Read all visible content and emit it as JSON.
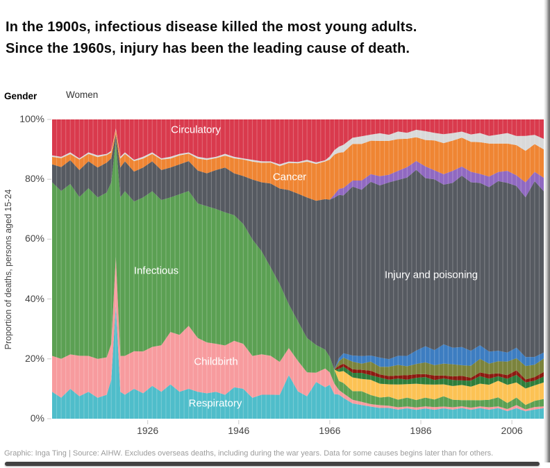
{
  "header": {
    "title_line1": "In the 1900s, infectious disease killed the most young adults.",
    "title_line2": "Since the 1960s, injury has been the leading cause of death.",
    "gender_label": "Gender",
    "gender_value": "Women"
  },
  "y_axis": {
    "title": "Proportion of deaths, persons aged 15-24",
    "tick_labels": [
      "100%",
      "80%",
      "60%",
      "40%",
      "20%",
      "0%"
    ]
  },
  "x_axis": {
    "tick_labels": [
      "1926",
      "1946",
      "1966",
      "1986",
      "2006"
    ]
  },
  "footer": {
    "caption": "Graphic: Inga Ting | Source: AIHW. Excludes overseas deaths, including during the war years. Data for some causes begins later than for others."
  },
  "chart_data": {
    "type": "area",
    "stacked": true,
    "normalized_to_100": true,
    "title": "Proportion of deaths by cause, women aged 15-24",
    "xlabel": "",
    "ylabel": "Proportion of deaths, persons aged 15-24",
    "x_domain": [
      1905,
      2013
    ],
    "y_domain": [
      0,
      100
    ],
    "xticks": [
      1926,
      1946,
      1966,
      1986,
      2006
    ],
    "yticks": [
      100,
      80,
      60,
      40,
      20,
      0
    ],
    "grid": {
      "vertical_year_lines": true,
      "color": "rgba(255,255,255,0.25)"
    },
    "legend": "labels drawn on areas",
    "x": [
      1905,
      1907,
      1909,
      1911,
      1913,
      1915,
      1917,
      1918,
      1919,
      1920,
      1921,
      1923,
      1925,
      1927,
      1929,
      1931,
      1933,
      1935,
      1937,
      1939,
      1941,
      1943,
      1945,
      1947,
      1949,
      1951,
      1953,
      1955,
      1957,
      1959,
      1961,
      1963,
      1965,
      1966,
      1967,
      1968,
      1969,
      1971,
      1973,
      1975,
      1977,
      1979,
      1981,
      1983,
      1985,
      1987,
      1989,
      1991,
      1993,
      1995,
      1997,
      1999,
      2001,
      2003,
      2005,
      2007,
      2009,
      2011,
      2013
    ],
    "series": [
      {
        "name": "respiratory",
        "label": "Respiratory",
        "color": "#4fbdca",
        "values": [
          9,
          7,
          10,
          7.5,
          9,
          7,
          8,
          13,
          38,
          9,
          8,
          10,
          8.5,
          11,
          9,
          11.5,
          9,
          10,
          9,
          8.5,
          9,
          8,
          10.5,
          10,
          7,
          8,
          8,
          8,
          14.5,
          9,
          7.5,
          12,
          10,
          11,
          8,
          8,
          7,
          5,
          4.5,
          4,
          3.5,
          3.5,
          3,
          3.5,
          3,
          3.5,
          3,
          3.5,
          3,
          3.5,
          3,
          3.5,
          3,
          3.5,
          2.5,
          3.5,
          2.5,
          3,
          3.5
        ]
      },
      {
        "name": "childbirth",
        "label": "Childbirth",
        "color": "#f79b9e",
        "values": [
          12,
          13,
          11.5,
          13.5,
          12,
          13,
          12.5,
          12,
          16,
          12,
          13,
          12.5,
          14,
          13,
          15.5,
          17.5,
          19,
          21,
          18,
          17,
          16,
          16.5,
          15.5,
          15,
          14,
          13.5,
          13,
          11,
          9,
          10,
          8,
          3,
          6,
          4,
          3.5,
          1.5,
          1.5,
          1.2,
          1,
          0.8,
          0.9,
          0.7,
          0.8,
          0.6,
          0.8,
          0.7,
          0.9,
          0.6,
          0.8,
          0.6,
          0.7,
          0.6,
          0.8,
          0.6,
          0.7,
          1,
          0.6,
          0.8,
          0.6
        ]
      },
      {
        "name": "infectious",
        "label": "Infectious",
        "color": "#5ba053",
        "values": [
          58,
          56,
          57,
          53,
          56,
          54,
          55,
          54,
          39,
          53,
          55,
          50,
          51.5,
          52,
          48.5,
          45,
          47,
          45,
          45,
          45.5,
          45,
          44.5,
          42,
          40,
          39,
          34.5,
          29.5,
          26,
          14.5,
          13,
          11.5,
          9,
          6,
          5,
          4.5,
          3,
          3.5,
          2.8,
          3.5,
          3,
          2.5,
          3,
          2.5,
          3,
          2.5,
          3,
          2.5,
          3.5,
          2.5,
          2,
          2.5,
          2,
          2.5,
          3,
          2,
          2.5,
          1.5,
          2,
          2.5
        ]
      },
      {
        "name": "band-yellow",
        "label": "",
        "color": "#fcc254",
        "values": [
          0,
          0,
          0,
          0,
          0,
          0,
          0,
          0,
          0,
          0,
          0,
          0,
          0,
          0,
          0,
          0,
          0,
          0,
          0,
          0,
          0,
          0,
          0,
          0,
          0,
          0,
          0,
          0,
          0,
          0,
          0,
          0,
          0,
          0,
          0,
          3,
          4,
          4.5,
          4,
          5,
          4.5,
          4,
          5,
          4.5,
          5.5,
          4.5,
          5,
          4,
          4.5,
          5,
          4.5,
          5.5,
          5,
          5.5,
          6,
          5,
          5.5,
          5,
          5.5
        ]
      },
      {
        "name": "band-dark-green",
        "label": "",
        "color": "#2e7d3b",
        "values": [
          0,
          0,
          0,
          0,
          0,
          0,
          0,
          0,
          0,
          0,
          0,
          0,
          0,
          0,
          0,
          0,
          0,
          0,
          0,
          0,
          0,
          0,
          0,
          0,
          0,
          0,
          0,
          0,
          0,
          0,
          0,
          0,
          0,
          0,
          0,
          1,
          1.5,
          1.5,
          2,
          1.5,
          2,
          1.5,
          2,
          1.5,
          2,
          2.5,
          1.5,
          2,
          2,
          1.5,
          2,
          2.5,
          2,
          1.5,
          2,
          2.5,
          2,
          1.5,
          2
        ]
      },
      {
        "name": "band-maroon",
        "label": "",
        "color": "#8c1a10",
        "values": [
          0,
          0,
          0,
          0,
          0,
          0,
          0,
          0,
          0,
          0,
          0,
          0,
          0,
          0,
          0,
          0,
          0,
          0,
          0,
          0,
          0,
          0,
          0,
          0,
          0,
          0,
          0,
          0,
          0,
          0,
          0,
          0,
          0,
          0,
          0,
          1,
          1,
          1.2,
          1,
          1.5,
          1,
          1.2,
          1,
          1.5,
          1.2,
          1,
          1.5,
          1,
          1.2,
          1.5,
          1,
          1.2,
          1.5,
          1,
          1.2,
          1.5,
          1,
          1.2,
          1.5
        ]
      },
      {
        "name": "band-olive",
        "label": "",
        "color": "#7b833c",
        "values": [
          0,
          0,
          0,
          0,
          0,
          0,
          0,
          0,
          0,
          0,
          0,
          0,
          0,
          0,
          0,
          0,
          0,
          0,
          0,
          0,
          0,
          0,
          0,
          0,
          0,
          0,
          0,
          0,
          0,
          0,
          0,
          0,
          0,
          0,
          0,
          1.5,
          2,
          2.5,
          2,
          3,
          2.5,
          3,
          3.5,
          3,
          3.5,
          4,
          3.5,
          4,
          4,
          3.5,
          4,
          4.5,
          3.5,
          4,
          4.5,
          4,
          4.5,
          4,
          4.5
        ]
      },
      {
        "name": "band-blue",
        "label": "",
        "color": "#3d7dc1",
        "values": [
          0,
          0,
          0,
          0,
          0,
          0,
          0,
          0,
          0,
          0,
          0,
          0,
          0,
          0,
          0,
          0,
          0,
          0,
          0,
          0,
          0,
          0,
          0,
          0,
          0,
          0,
          0,
          0,
          0,
          0,
          0,
          0,
          0,
          0,
          0,
          1,
          1.5,
          2,
          2.5,
          2,
          3,
          2.5,
          3,
          3.5,
          4.5,
          5.5,
          5,
          6.5,
          5.5,
          6,
          5,
          4.5,
          4,
          3.5,
          3,
          3.5,
          3,
          2.5,
          2
        ]
      },
      {
        "name": "injury",
        "label": "Injury and poisoning",
        "color": "#565a61",
        "values": [
          6,
          8,
          8,
          9,
          9,
          10,
          10,
          8,
          2,
          10,
          10,
          10,
          10,
          10,
          10,
          10,
          10,
          10,
          11,
          11,
          13,
          15,
          14,
          16,
          20,
          23,
          28,
          32,
          38,
          42,
          47,
          47,
          48,
          51,
          56,
          54,
          53,
          55.3,
          54.5,
          57.2,
          56.1,
          57.6,
          58.2,
          59.9,
          61,
          57.3,
          57.1,
          53.9,
          54.5,
          56.4,
          56.3,
          53.7,
          54.7,
          56.4,
          56.1,
          53.5,
          53.4,
          57,
          53.9
        ]
      },
      {
        "name": "band-purple",
        "label": "",
        "color": "#9069c1",
        "values": [
          0,
          0,
          0,
          0,
          0,
          0,
          0,
          0,
          0,
          0,
          0,
          0,
          0,
          0,
          0,
          0,
          0,
          0,
          0,
          0,
          0,
          0,
          0,
          0,
          0,
          0,
          0,
          0,
          0,
          0,
          0,
          0,
          0,
          0,
          1,
          2,
          2.5,
          2,
          3,
          2.5,
          3,
          2.5,
          3,
          3.5,
          3,
          4,
          3,
          3.5,
          4,
          3,
          3.5,
          3,
          3.5,
          3,
          4,
          3.5,
          5,
          3,
          4.5
        ]
      },
      {
        "name": "cancer",
        "label": "Cancer",
        "color": "#ef8533",
        "values": [
          2.5,
          3,
          2,
          3.5,
          2.5,
          3.5,
          2.5,
          2,
          1.5,
          3,
          2.5,
          3.5,
          3,
          2.5,
          3.5,
          3,
          3,
          2.5,
          4,
          4.5,
          4,
          4,
          5,
          5.5,
          6,
          6.5,
          7,
          7.5,
          9,
          10,
          12,
          12,
          12,
          13,
          13,
          12,
          12,
          12,
          12,
          11,
          11.5,
          11,
          10.5,
          9.5,
          8,
          9,
          10,
          10.5,
          10,
          9.5,
          10,
          10.5,
          11,
          9.5,
          9,
          10,
          10.5,
          9,
          9.5
        ]
      },
      {
        "name": "band-light-grey",
        "label": "",
        "color": "#d9d9d9",
        "values": [
          0.5,
          0.4,
          0.6,
          0.4,
          0.5,
          0.6,
          0.4,
          0.5,
          0.4,
          0.6,
          0.5,
          0.4,
          0.6,
          0.5,
          0.4,
          0.6,
          0.5,
          0.4,
          0.6,
          0.5,
          0.4,
          0.6,
          0.5,
          0.4,
          0.6,
          0.5,
          0.4,
          0.6,
          0.5,
          0.4,
          0.6,
          0.5,
          0.4,
          1,
          1.5,
          2,
          2.5,
          2,
          2.5,
          2,
          2.5,
          2,
          2.5,
          2,
          2.5,
          3,
          2.5,
          3,
          2.5,
          2,
          2.5,
          3,
          2.5,
          3,
          3.5,
          3,
          5,
          3,
          3.5
        ]
      },
      {
        "name": "circulatory",
        "label": "Circulatory",
        "color": "#d93a4d",
        "values": [
          12,
          12.5,
          11,
          13,
          11,
          12,
          11.5,
          10.5,
          3,
          12.5,
          11,
          13.5,
          12.5,
          11,
          13,
          12.5,
          11.5,
          11,
          12.5,
          13,
          12.5,
          11.5,
          12.5,
          13,
          13.5,
          14,
          14,
          15,
          14,
          14,
          13.5,
          14,
          13,
          12,
          10,
          9,
          8.5,
          6,
          5.5,
          5,
          4.5,
          5,
          4,
          4.5,
          3.5,
          4,
          4.5,
          5,
          4.5,
          4,
          5,
          4.5,
          5.5,
          5,
          4.5,
          5.5,
          5.5,
          5,
          6.5
        ]
      }
    ]
  }
}
